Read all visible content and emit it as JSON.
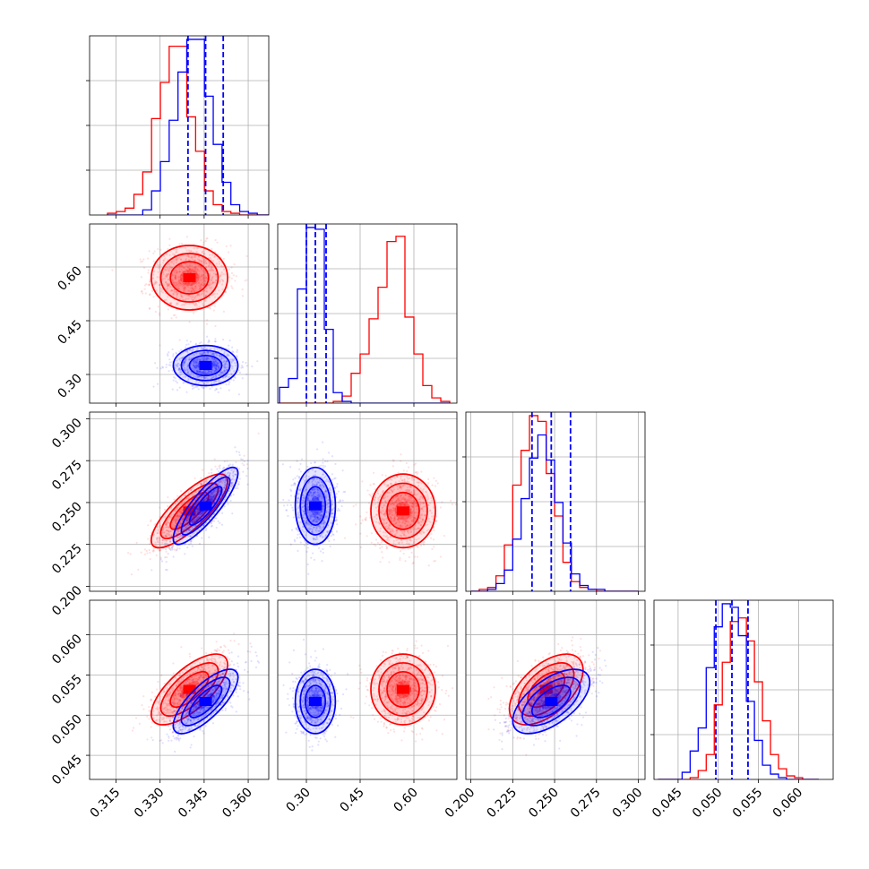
{
  "colors": {
    "series_red": "#ff0000",
    "series_blue": "#0000ff",
    "grid": "#b0b0b0",
    "frame": "#000000"
  },
  "chart_data": {
    "type": "corner",
    "title": "",
    "grid": true,
    "legend": "none",
    "parameters": [
      {
        "ticks": [
          0.315,
          0.33,
          0.345,
          0.36
        ],
        "tick_labels": [
          "0.315",
          "0.330",
          "0.345",
          "0.360"
        ],
        "range": [
          0.306,
          0.367
        ]
      },
      {
        "ticks": [
          0.3,
          0.45,
          0.6
        ],
        "tick_labels": [
          "0.30",
          "0.45",
          "0.60"
        ],
        "range": [
          0.22,
          0.72
        ]
      },
      {
        "ticks": [
          0.2,
          0.225,
          0.25,
          0.275,
          0.3
        ],
        "tick_labels": [
          "0.200",
          "0.225",
          "0.250",
          "0.275",
          "0.300"
        ],
        "range": [
          0.197,
          0.304
        ]
      },
      {
        "ticks": [
          0.045,
          0.05,
          0.055,
          0.06
        ],
        "tick_labels": [
          "0.045",
          "0.050",
          "0.055",
          "0.060"
        ],
        "range": [
          0.042,
          0.0643
        ]
      }
    ],
    "series": [
      {
        "color": "red",
        "mean": [
          0.34,
          0.57,
          0.245,
          0.0532
        ],
        "std": [
          0.0065,
          0.045,
          0.011,
          0.0022
        ],
        "corr": [
          [
            1,
            0,
            0.8,
            0.7
          ],
          [
            0,
            1,
            0,
            0
          ],
          [
            0.8,
            0,
            1,
            0.55
          ],
          [
            0.7,
            0,
            0.55,
            1
          ]
        ]
      },
      {
        "color": "blue",
        "mean": [
          0.3455,
          0.325,
          0.248,
          0.0517
        ],
        "std": [
          0.0055,
          0.028,
          0.0115,
          0.002
        ],
        "corr": [
          [
            1,
            0,
            0.85,
            0.75
          ],
          [
            0,
            1,
            0,
            0
          ],
          [
            0.85,
            0,
            1,
            0.6
          ],
          [
            0.75,
            0,
            0.6,
            1
          ]
        ]
      }
    ],
    "quantile_lines": [
      {
        "param": 0,
        "values": [
          0.3395,
          0.3455,
          0.3515
        ]
      },
      {
        "param": 1,
        "values": [
          0.3,
          0.325,
          0.355
        ]
      },
      {
        "param": 2,
        "values": [
          0.2365,
          0.248,
          0.2595
        ]
      },
      {
        "param": 3,
        "values": [
          0.0497,
          0.0517,
          0.0537
        ]
      }
    ],
    "histograms": [
      {
        "param": 0,
        "edges": [
          0.3121,
          0.3151,
          0.3181,
          0.3211,
          0.3241,
          0.3271,
          0.3301,
          0.3331,
          0.3361,
          0.3391,
          0.3421,
          0.3451,
          0.3481,
          0.3511,
          0.3541,
          0.3571,
          0.3601,
          0.3631,
          0.3661,
          0.3691,
          0.3721
        ],
        "counts": {
          "red": [
            0.01,
            0.02,
            0.04,
            0.12,
            0.25,
            0.56,
            0.77,
            0.98,
            0.98,
            0.57,
            0.37,
            0.14,
            0.06,
            0.02,
            0.01,
            0,
            0,
            0,
            0,
            0
          ],
          "blue": [
            0,
            0,
            0,
            0,
            0.03,
            0.14,
            0.31,
            0.55,
            0.83,
            1.02,
            1.02,
            0.69,
            0.41,
            0.19,
            0.06,
            0.02,
            0.01,
            0,
            0,
            0
          ]
        }
      },
      {
        "param": 1,
        "edges": [
          0.225,
          0.25,
          0.275,
          0.3,
          0.325,
          0.35,
          0.375,
          0.4,
          0.425,
          0.45,
          0.475,
          0.5,
          0.525,
          0.55,
          0.575,
          0.6,
          0.625,
          0.65,
          0.675,
          0.7
        ],
        "counts": {
          "red": [
            0,
            0,
            0,
            0,
            0,
            0,
            0.01,
            0.04,
            0.17,
            0.28,
            0.48,
            0.66,
            0.92,
            0.95,
            0.49,
            0.28,
            0.1,
            0.03,
            0.01
          ],
          "blue": [
            0.09,
            0.14,
            0.65,
            1.0,
            0.99,
            0.42,
            0.06,
            0.01,
            0,
            0,
            0,
            0,
            0,
            0,
            0,
            0,
            0,
            0,
            0
          ]
        }
      },
      {
        "param": 2,
        "edges": [
          0.2,
          0.205,
          0.21,
          0.215,
          0.22,
          0.225,
          0.23,
          0.235,
          0.24,
          0.245,
          0.25,
          0.255,
          0.26,
          0.265,
          0.27,
          0.275,
          0.28,
          0.285,
          0.29,
          0.295,
          0.3
        ],
        "counts": {
          "red": [
            0,
            0.01,
            0.02,
            0.08,
            0.24,
            0.55,
            0.73,
            0.91,
            0.88,
            0.61,
            0.39,
            0.15,
            0.05,
            0.02,
            0.01,
            0,
            0,
            0,
            0,
            0
          ],
          "blue": [
            0,
            0,
            0.01,
            0.04,
            0.11,
            0.27,
            0.48,
            0.69,
            0.81,
            0.68,
            0.46,
            0.25,
            0.09,
            0.03,
            0.01,
            0.01,
            0,
            0,
            0,
            0
          ]
        }
      },
      {
        "param": 3,
        "edges": [
          0.0425,
          0.0435,
          0.0445,
          0.0455,
          0.0465,
          0.0475,
          0.0485,
          0.0495,
          0.0505,
          0.0515,
          0.0525,
          0.0535,
          0.0545,
          0.0555,
          0.0565,
          0.0575,
          0.0585,
          0.0595,
          0.0605,
          0.0615,
          0.0625
        ],
        "counts": {
          "red": [
            0,
            0,
            0,
            0,
            0.01,
            0.05,
            0.14,
            0.42,
            0.66,
            0.89,
            0.91,
            0.78,
            0.55,
            0.33,
            0.14,
            0.06,
            0.02,
            0.01,
            0,
            0
          ],
          "blue": [
            0,
            0,
            0,
            0.04,
            0.16,
            0.29,
            0.63,
            0.86,
            0.99,
            0.97,
            0.81,
            0.44,
            0.22,
            0.08,
            0.03,
            0.01,
            0,
            0,
            0,
            0
          ]
        }
      }
    ]
  }
}
